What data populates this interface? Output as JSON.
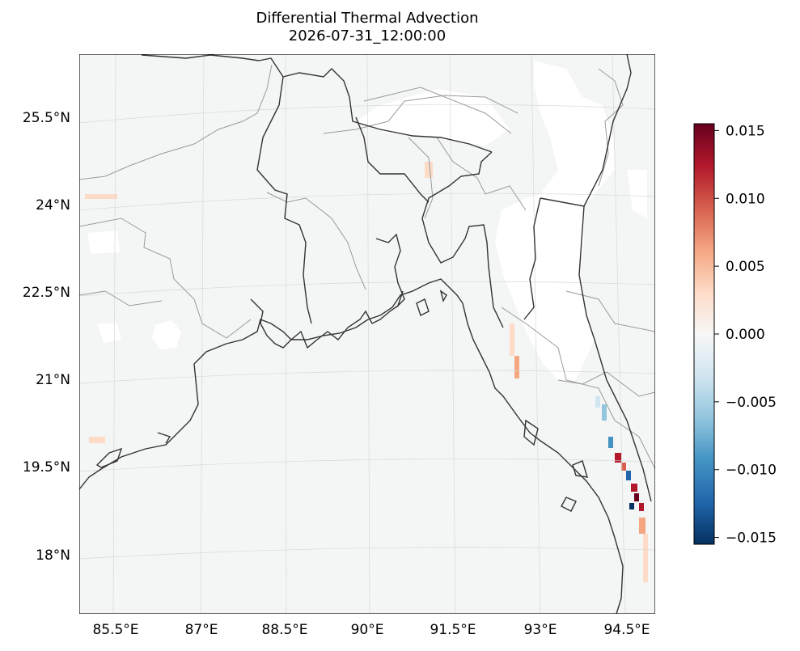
{
  "title": "Differential Thermal Advection",
  "subtitle": "2026-07-31_12:00:00",
  "map": {
    "projection": "lambert-conformal",
    "lon_range": [
      84.9,
      95.0
    ],
    "lat_range": [
      16.9,
      26.5
    ],
    "gridlines": true,
    "features": [
      "coastline",
      "country-borders",
      "state-borders"
    ],
    "lon_ticks": [
      "85.5°E",
      "87°E",
      "88.5°E",
      "90°E",
      "91.5°E",
      "93°E",
      "94.5°E"
    ],
    "lat_ticks": [
      "25.5°N",
      "24°N",
      "22.5°N",
      "21°N",
      "19.5°N",
      "18°N"
    ],
    "masked_color": "#ffffff",
    "field_background": "#f4f5f5"
  },
  "colorbar": {
    "colormap": "RdBu_r",
    "range": [
      -0.0155,
      0.0155
    ],
    "ticks": [
      "0.015",
      "0.010",
      "0.005",
      "0.000",
      "−0.005",
      "−0.010",
      "−0.015"
    ],
    "tick_values": [
      0.015,
      0.01,
      0.005,
      0.0,
      -0.005,
      -0.01,
      -0.015
    ],
    "colors": [
      "#053061",
      "#2166ac",
      "#4393c3",
      "#92c5de",
      "#d1e5f0",
      "#f7f7f7",
      "#fddbc7",
      "#f4a582",
      "#d6604d",
      "#b2182b",
      "#67001f"
    ]
  }
}
